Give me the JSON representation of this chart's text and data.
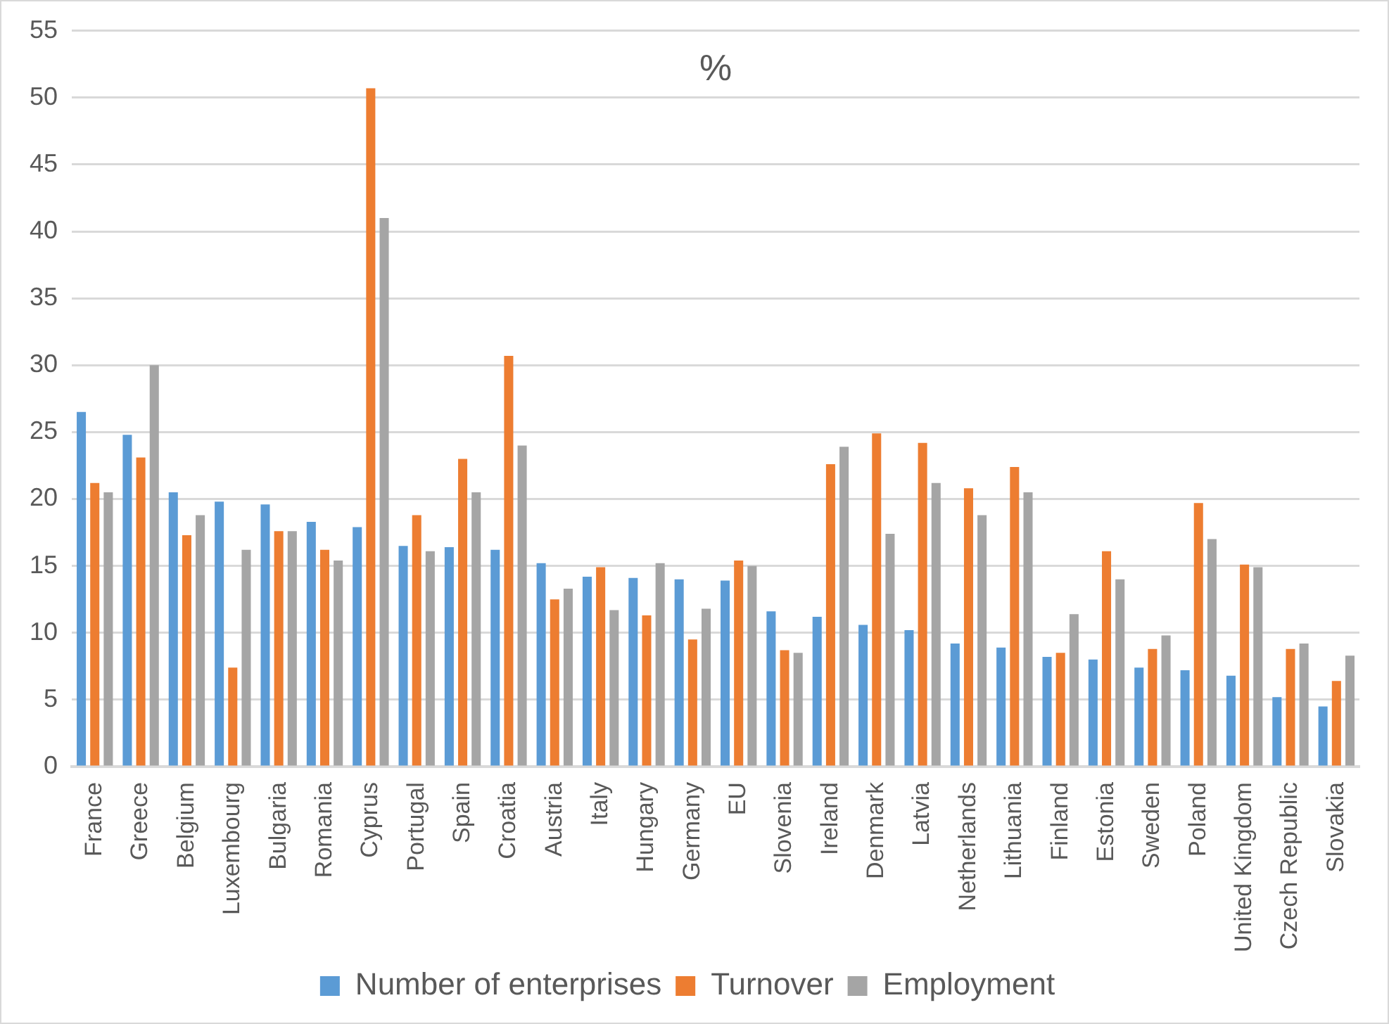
{
  "chart_data": {
    "type": "bar",
    "title": "%",
    "categories": [
      "France",
      "Greece",
      "Belgium",
      "Luxembourg",
      "Bulgaria",
      "Romania",
      "Cyprus",
      "Portugal",
      "Spain",
      "Croatia",
      "Austria",
      "Italy",
      "Hungary",
      "Germany",
      "EU",
      "Slovenia",
      "Ireland",
      "Denmark",
      "Latvia",
      "Netherlands",
      "Lithuania",
      "Finland",
      "Estonia",
      "Sweden",
      "Poland",
      "United Kingdom",
      "Czech Republic",
      "Slovakia"
    ],
    "series": [
      {
        "name": "Number of enterprises",
        "color": "#5b9bd5",
        "values": [
          26.5,
          24.8,
          20.5,
          19.8,
          19.6,
          18.3,
          17.9,
          16.5,
          16.4,
          16.2,
          15.2,
          14.2,
          14.1,
          14.0,
          13.9,
          11.6,
          11.2,
          10.6,
          10.2,
          9.2,
          8.9,
          8.2,
          8.0,
          7.4,
          7.2,
          6.8,
          5.2,
          4.5
        ]
      },
      {
        "name": "Turnover",
        "color": "#ed7d31",
        "values": [
          21.2,
          23.1,
          17.3,
          7.4,
          17.6,
          16.2,
          50.7,
          18.8,
          23.0,
          30.7,
          12.5,
          14.9,
          11.3,
          9.5,
          15.4,
          8.7,
          22.6,
          24.9,
          24.2,
          20.8,
          22.4,
          8.5,
          16.1,
          8.8,
          19.7,
          15.1,
          8.8,
          6.4
        ]
      },
      {
        "name": "Employment",
        "color": "#a5a5a5",
        "values": [
          20.5,
          30.0,
          18.8,
          16.2,
          17.6,
          15.4,
          41.0,
          16.1,
          20.5,
          24.0,
          13.3,
          11.7,
          15.2,
          11.8,
          15.0,
          8.5,
          23.9,
          17.4,
          21.2,
          18.8,
          20.5,
          11.4,
          14.0,
          9.8,
          17.0,
          14.9,
          9.2,
          8.3
        ]
      }
    ],
    "ylim": [
      0,
      55
    ],
    "yticks": [
      0,
      5,
      10,
      15,
      20,
      25,
      30,
      35,
      40,
      45,
      50,
      55
    ],
    "grid": "y",
    "legend": "bottom"
  }
}
